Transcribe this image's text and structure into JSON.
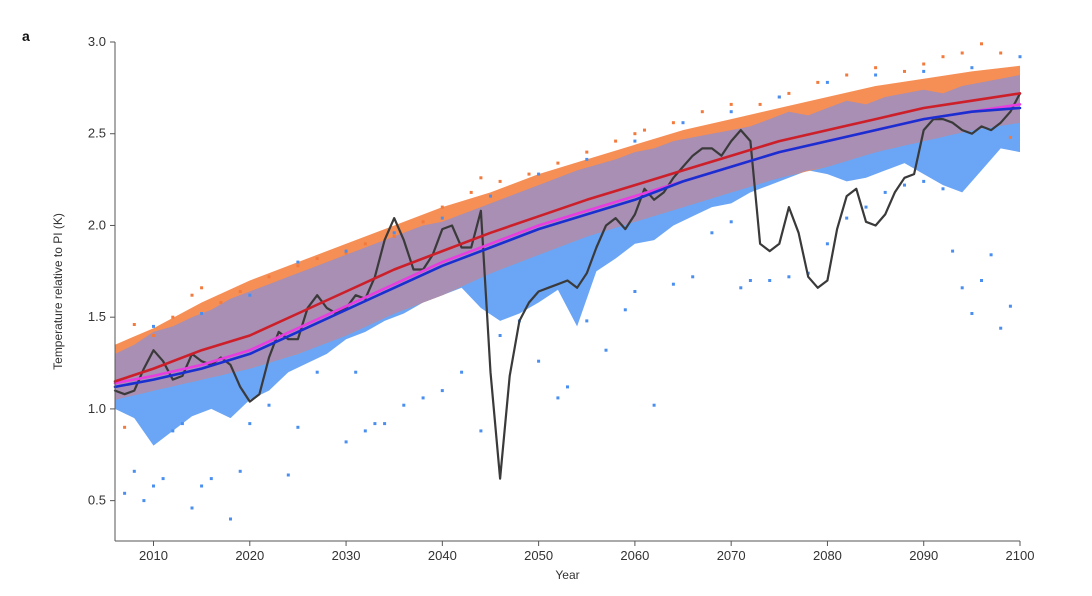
{
  "panel_label": "a",
  "chart_data": {
    "type": "line",
    "title": "",
    "xlabel": "Year",
    "ylabel": "Temperature relative to PI (K)",
    "xlim": [
      2006,
      2100
    ],
    "ylim": [
      0.28,
      3.0
    ],
    "xticks": [
      2010,
      2020,
      2030,
      2040,
      2050,
      2060,
      2070,
      2080,
      2090,
      2100
    ],
    "yticks": [
      0.5,
      1.0,
      1.5,
      2.0,
      2.5,
      3.0
    ],
    "ytick_labels": [
      "0.5",
      "1.0",
      "1.5",
      "2.0",
      "2.5",
      "3.0"
    ],
    "grid": false,
    "legend": "none",
    "colors": {
      "orange_band": "#f5894d",
      "blue_band": "#5b9bf5",
      "overlap_band": "#a38fb8",
      "red_line": "#cc1f2a",
      "magenta_line": "#e83de0",
      "blue_line": "#1a2fd0",
      "black_line": "#3a3a3a",
      "orange_dots": "#f27a3c",
      "blue_dots": "#4a8ff0"
    },
    "bands": [
      {
        "id": "orange-band",
        "x": [
          2006,
          2010,
          2015,
          2020,
          2025,
          2030,
          2035,
          2040,
          2045,
          2050,
          2055,
          2060,
          2065,
          2070,
          2075,
          2080,
          2085,
          2090,
          2095,
          2100
        ],
        "upper": [
          1.35,
          1.44,
          1.58,
          1.7,
          1.8,
          1.9,
          2.0,
          2.1,
          2.18,
          2.28,
          2.36,
          2.44,
          2.52,
          2.58,
          2.64,
          2.7,
          2.76,
          2.8,
          2.84,
          2.87
        ],
        "lower": [
          1.05,
          1.1,
          1.16,
          1.22,
          1.3,
          1.4,
          1.52,
          1.62,
          1.74,
          1.84,
          1.94,
          2.02,
          2.1,
          2.18,
          2.26,
          2.32,
          2.4,
          2.46,
          2.52,
          2.56
        ]
      },
      {
        "id": "blue-band",
        "x": [
          2006,
          2008,
          2010,
          2012,
          2014,
          2016,
          2018,
          2020,
          2022,
          2024,
          2026,
          2028,
          2030,
          2032,
          2034,
          2036,
          2038,
          2040,
          2042,
          2044,
          2046,
          2048,
          2050,
          2052,
          2054,
          2056,
          2058,
          2060,
          2062,
          2064,
          2066,
          2068,
          2070,
          2072,
          2074,
          2076,
          2078,
          2080,
          2082,
          2084,
          2086,
          2088,
          2090,
          2092,
          2094,
          2096,
          2098,
          2100
        ],
        "upper": [
          1.3,
          1.35,
          1.42,
          1.45,
          1.5,
          1.54,
          1.6,
          1.64,
          1.68,
          1.72,
          1.76,
          1.8,
          1.84,
          1.88,
          1.92,
          1.96,
          2.0,
          2.02,
          2.06,
          2.1,
          2.14,
          2.18,
          2.22,
          2.26,
          2.3,
          2.33,
          2.36,
          2.4,
          2.42,
          2.46,
          2.48,
          2.5,
          2.52,
          2.54,
          2.58,
          2.62,
          2.6,
          2.64,
          2.68,
          2.66,
          2.7,
          2.72,
          2.74,
          2.72,
          2.76,
          2.78,
          2.8,
          2.82
        ],
        "lower": [
          1.0,
          0.95,
          0.8,
          0.88,
          0.96,
          1.0,
          0.95,
          1.05,
          1.1,
          1.2,
          1.25,
          1.3,
          1.38,
          1.42,
          1.48,
          1.52,
          1.58,
          1.62,
          1.66,
          1.55,
          1.48,
          1.52,
          1.58,
          1.65,
          1.45,
          1.75,
          1.82,
          1.9,
          1.92,
          2.0,
          2.05,
          2.1,
          2.12,
          2.18,
          2.22,
          2.26,
          2.3,
          2.28,
          2.24,
          2.26,
          2.3,
          2.34,
          2.28,
          2.22,
          2.18,
          2.3,
          2.42,
          2.4
        ]
      }
    ],
    "series": [
      {
        "id": "red-mean",
        "x": [
          2006,
          2010,
          2015,
          2020,
          2025,
          2030,
          2035,
          2040,
          2045,
          2050,
          2055,
          2060,
          2065,
          2070,
          2075,
          2080,
          2085,
          2090,
          2095,
          2100
        ],
        "y": [
          1.15,
          1.22,
          1.32,
          1.4,
          1.52,
          1.64,
          1.76,
          1.86,
          1.96,
          2.05,
          2.14,
          2.22,
          2.3,
          2.38,
          2.46,
          2.52,
          2.58,
          2.64,
          2.68,
          2.72
        ]
      },
      {
        "id": "magenta-mean",
        "x": [
          2006,
          2010,
          2015,
          2020,
          2025,
          2030,
          2035,
          2040,
          2045,
          2050,
          2055,
          2060,
          2065,
          2070,
          2075,
          2080,
          2085,
          2090,
          2095,
          2100
        ],
        "y": [
          1.14,
          1.18,
          1.24,
          1.32,
          1.44,
          1.56,
          1.68,
          1.8,
          1.9,
          2.0,
          2.08,
          2.16,
          2.24,
          2.32,
          2.4,
          2.46,
          2.52,
          2.58,
          2.62,
          2.66
        ]
      },
      {
        "id": "blue-mean",
        "x": [
          2006,
          2010,
          2015,
          2020,
          2025,
          2030,
          2035,
          2040,
          2045,
          2050,
          2055,
          2060,
          2065,
          2070,
          2075,
          2080,
          2085,
          2090,
          2095,
          2100
        ],
        "y": [
          1.12,
          1.16,
          1.22,
          1.3,
          1.42,
          1.54,
          1.66,
          1.78,
          1.88,
          1.98,
          2.06,
          2.14,
          2.24,
          2.32,
          2.4,
          2.46,
          2.52,
          2.58,
          2.62,
          2.64
        ]
      },
      {
        "id": "black-run",
        "x": [
          2006,
          2007,
          2008,
          2009,
          2010,
          2011,
          2012,
          2013,
          2014,
          2015,
          2016,
          2017,
          2018,
          2019,
          2020,
          2021,
          2022,
          2023,
          2024,
          2025,
          2026,
          2027,
          2028,
          2029,
          2030,
          2031,
          2032,
          2033,
          2034,
          2035,
          2036,
          2037,
          2038,
          2039,
          2040,
          2041,
          2042,
          2043,
          2044,
          2045,
          2046,
          2047,
          2048,
          2049,
          2050,
          2051,
          2052,
          2053,
          2054,
          2055,
          2056,
          2057,
          2058,
          2059,
          2060,
          2061,
          2062,
          2063,
          2064,
          2065,
          2066,
          2067,
          2068,
          2069,
          2070,
          2071,
          2072,
          2073,
          2074,
          2075,
          2076,
          2077,
          2078,
          2079,
          2080,
          2081,
          2082,
          2083,
          2084,
          2085,
          2086,
          2087,
          2088,
          2089,
          2090,
          2091,
          2092,
          2093,
          2094,
          2095,
          2096,
          2097,
          2098,
          2099,
          2100
        ],
        "y": [
          1.1,
          1.08,
          1.1,
          1.22,
          1.32,
          1.26,
          1.16,
          1.18,
          1.3,
          1.26,
          1.24,
          1.28,
          1.24,
          1.12,
          1.04,
          1.08,
          1.28,
          1.42,
          1.38,
          1.38,
          1.55,
          1.62,
          1.55,
          1.52,
          1.55,
          1.62,
          1.6,
          1.72,
          1.92,
          2.04,
          1.92,
          1.76,
          1.76,
          1.84,
          1.98,
          2.0,
          1.88,
          1.88,
          2.08,
          1.2,
          0.62,
          1.18,
          1.48,
          1.58,
          1.64,
          1.66,
          1.68,
          1.7,
          1.66,
          1.74,
          1.88,
          2.0,
          2.04,
          1.98,
          2.06,
          2.2,
          2.14,
          2.18,
          2.26,
          2.32,
          2.38,
          2.42,
          2.42,
          2.38,
          2.46,
          2.52,
          2.46,
          1.9,
          1.86,
          1.9,
          2.1,
          1.96,
          1.72,
          1.66,
          1.7,
          1.98,
          2.16,
          2.2,
          2.02,
          2.0,
          2.06,
          2.18,
          2.26,
          2.28,
          2.52,
          2.58,
          2.58,
          2.56,
          2.52,
          2.5,
          2.54,
          2.52,
          2.56,
          2.62,
          2.72
        ]
      }
    ],
    "dots": [
      {
        "id": "orange-dots",
        "points": [
          [
            2007,
            0.9
          ],
          [
            2008,
            1.46
          ],
          [
            2010,
            1.4
          ],
          [
            2012,
            1.5
          ],
          [
            2014,
            1.62
          ],
          [
            2015,
            1.66
          ],
          [
            2017,
            1.58
          ],
          [
            2019,
            1.64
          ],
          [
            2022,
            1.72
          ],
          [
            2025,
            1.78
          ],
          [
            2027,
            1.82
          ],
          [
            2030,
            1.85
          ],
          [
            2032,
            1.9
          ],
          [
            2035,
            1.94
          ],
          [
            2038,
            2.02
          ],
          [
            2040,
            2.1
          ],
          [
            2043,
            2.18
          ],
          [
            2046,
            2.24
          ],
          [
            2049,
            2.28
          ],
          [
            2052,
            2.34
          ],
          [
            2055,
            2.4
          ],
          [
            2058,
            2.46
          ],
          [
            2061,
            2.52
          ],
          [
            2064,
            2.56
          ],
          [
            2067,
            2.62
          ],
          [
            2070,
            2.66
          ],
          [
            2073,
            2.66
          ],
          [
            2076,
            2.72
          ],
          [
            2079,
            2.78
          ],
          [
            2082,
            2.82
          ],
          [
            2085,
            2.86
          ],
          [
            2088,
            2.84
          ],
          [
            2090,
            2.88
          ],
          [
            2092,
            2.92
          ],
          [
            2094,
            2.94
          ],
          [
            2096,
            2.99
          ],
          [
            2098,
            2.94
          ],
          [
            2099,
            2.48
          ],
          [
            2044,
            2.26
          ],
          [
            2060,
            2.5
          ],
          [
            2075,
            2.7
          ]
        ]
      },
      {
        "id": "blue-dots",
        "points": [
          [
            2007,
            0.54
          ],
          [
            2008,
            0.66
          ],
          [
            2009,
            0.5
          ],
          [
            2010,
            0.58
          ],
          [
            2011,
            0.62
          ],
          [
            2012,
            0.88
          ],
          [
            2013,
            0.92
          ],
          [
            2014,
            0.46
          ],
          [
            2015,
            0.58
          ],
          [
            2016,
            0.62
          ],
          [
            2018,
            0.4
          ],
          [
            2019,
            0.66
          ],
          [
            2020,
            0.92
          ],
          [
            2022,
            1.02
          ],
          [
            2024,
            0.64
          ],
          [
            2025,
            0.9
          ],
          [
            2027,
            1.2
          ],
          [
            2030,
            0.82
          ],
          [
            2031,
            1.2
          ],
          [
            2032,
            0.88
          ],
          [
            2033,
            0.92
          ],
          [
            2034,
            0.92
          ],
          [
            2036,
            1.02
          ],
          [
            2038,
            1.06
          ],
          [
            2040,
            1.1
          ],
          [
            2042,
            1.2
          ],
          [
            2044,
            0.88
          ],
          [
            2046,
            1.4
          ],
          [
            2048,
            1.48
          ],
          [
            2050,
            1.26
          ],
          [
            2052,
            1.06
          ],
          [
            2053,
            1.12
          ],
          [
            2055,
            1.48
          ],
          [
            2057,
            1.32
          ],
          [
            2059,
            1.54
          ],
          [
            2060,
            1.64
          ],
          [
            2062,
            1.02
          ],
          [
            2064,
            1.68
          ],
          [
            2066,
            1.72
          ],
          [
            2068,
            1.96
          ],
          [
            2070,
            2.02
          ],
          [
            2071,
            1.66
          ],
          [
            2072,
            1.7
          ],
          [
            2074,
            1.7
          ],
          [
            2076,
            1.72
          ],
          [
            2078,
            1.74
          ],
          [
            2080,
            1.9
          ],
          [
            2082,
            2.04
          ],
          [
            2084,
            2.1
          ],
          [
            2086,
            2.18
          ],
          [
            2088,
            2.22
          ],
          [
            2090,
            2.24
          ],
          [
            2092,
            2.2
          ],
          [
            2093,
            1.86
          ],
          [
            2094,
            1.66
          ],
          [
            2095,
            1.52
          ],
          [
            2096,
            1.7
          ],
          [
            2097,
            1.84
          ],
          [
            2098,
            1.44
          ],
          [
            2099,
            1.56
          ],
          [
            2010,
            1.45
          ],
          [
            2015,
            1.52
          ],
          [
            2020,
            1.62
          ],
          [
            2025,
            1.8
          ],
          [
            2030,
            1.86
          ],
          [
            2035,
            1.96
          ],
          [
            2040,
            2.04
          ],
          [
            2045,
            2.16
          ],
          [
            2050,
            2.28
          ],
          [
            2055,
            2.36
          ],
          [
            2060,
            2.46
          ],
          [
            2065,
            2.56
          ],
          [
            2070,
            2.62
          ],
          [
            2075,
            2.7
          ],
          [
            2080,
            2.78
          ],
          [
            2085,
            2.82
          ],
          [
            2090,
            2.84
          ],
          [
            2095,
            2.86
          ],
          [
            2100,
            2.92
          ]
        ]
      }
    ]
  }
}
